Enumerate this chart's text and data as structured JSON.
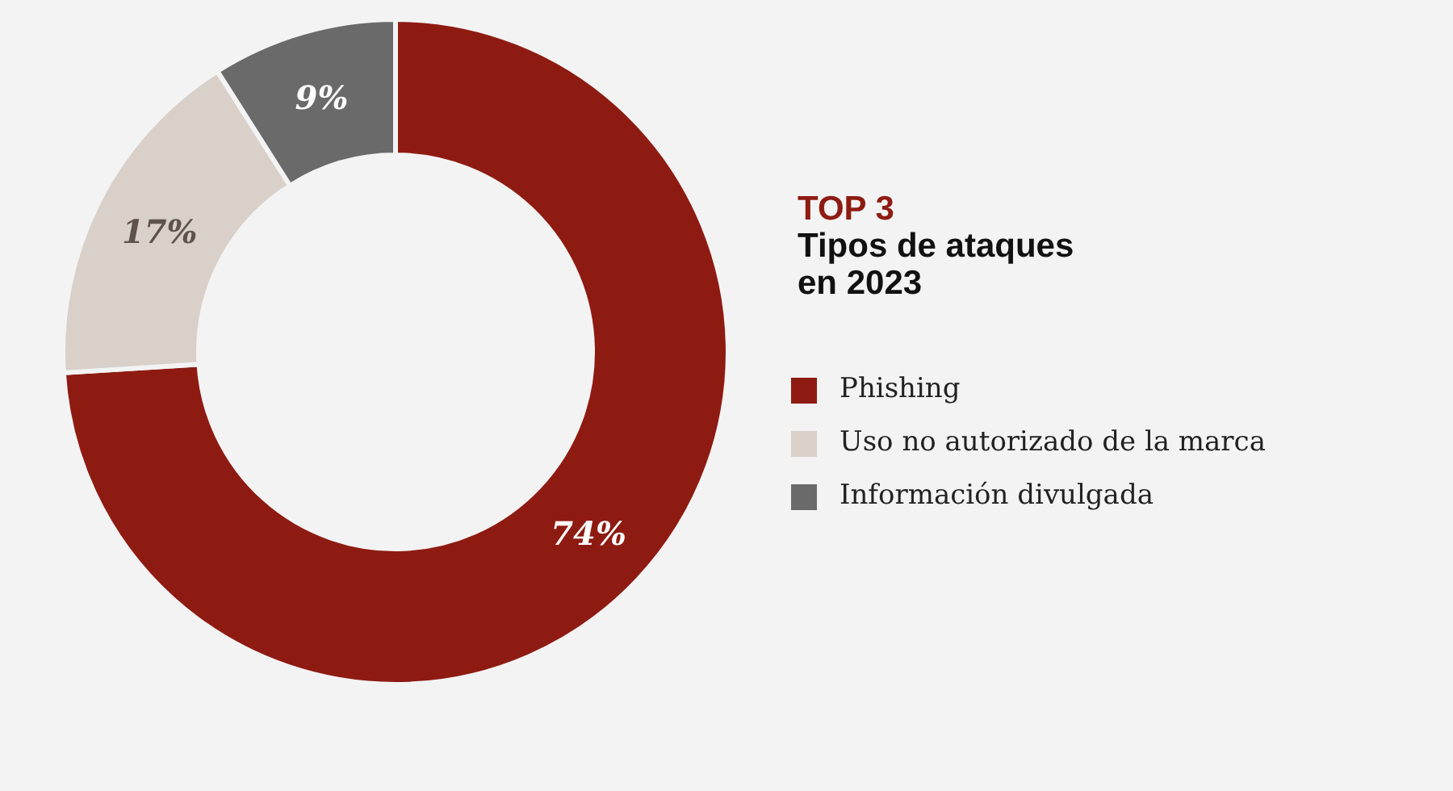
{
  "chart_data": {
    "type": "donut",
    "title": "TOP 3",
    "subtitle": "Tipos de ataques en 2023",
    "categories": [
      "Phishing",
      "Uso no autorizado de la marca",
      "Información divulgada"
    ],
    "values": [
      74,
      17,
      9
    ],
    "colors": [
      "#8e1b12",
      "#d8d0c9",
      "#6a6a6a"
    ],
    "value_labels": [
      "74%",
      "17%",
      "9%"
    ],
    "legend": "right"
  }
}
